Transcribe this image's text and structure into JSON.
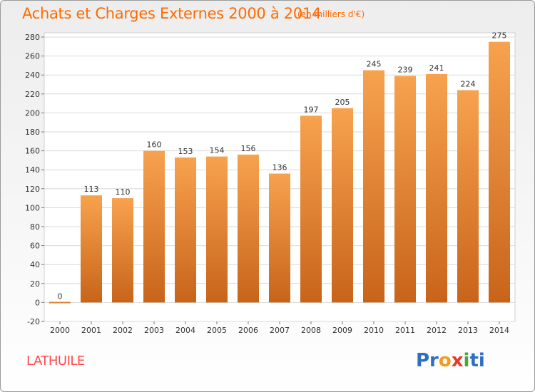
{
  "header": {
    "title": "Achats et Charges Externes 2000 à 2014",
    "unit": "(en milliers d'€)"
  },
  "footer": {
    "commune": "LATHUILE",
    "logo_parts": [
      "Pr",
      "o",
      "x",
      "i",
      "ti"
    ]
  },
  "colors": {
    "title": "#ff6a00",
    "bar_top": "#f7a24e",
    "bar_bottom": "#c8641a",
    "grid": "#d9d9d9"
  },
  "chart_data": {
    "type": "bar",
    "title": "Achats et Charges Externes 2000 à 2014",
    "subtitle": "(en milliers d'€)",
    "categories": [
      "2000",
      "2001",
      "2002",
      "2003",
      "2004",
      "2005",
      "2006",
      "2007",
      "2008",
      "2009",
      "2010",
      "2011",
      "2012",
      "2013",
      "2014"
    ],
    "values": [
      0,
      113,
      110,
      160,
      153,
      154,
      156,
      136,
      197,
      205,
      245,
      239,
      241,
      224,
      275
    ],
    "ylim": [
      -20,
      280
    ],
    "yticks": [
      -20,
      0,
      20,
      40,
      60,
      80,
      100,
      120,
      140,
      160,
      180,
      200,
      220,
      240,
      260,
      280
    ],
    "grid": true
  }
}
